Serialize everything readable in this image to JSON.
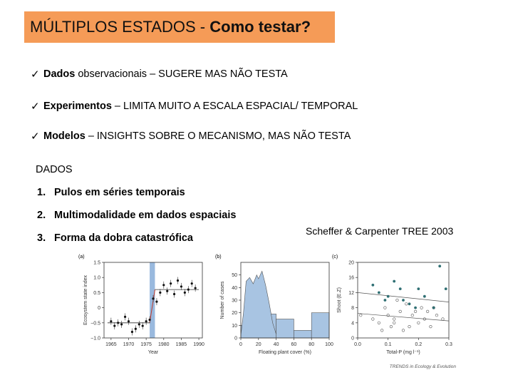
{
  "title": {
    "normal": "MÚLTIPLOS ESTADOS - ",
    "bold": "Como testar?"
  },
  "bullets": [
    {
      "bold": "Dados",
      "rest": "observacionais – SUGERE MAS NÃO TESTA"
    },
    {
      "bold": "Experimentos",
      "rest": "– LIMITA MUITO A ESCALA ESPACIAL/ TEMPORAL"
    },
    {
      "bold": "Modelos",
      "rest": "– INSIGHTS SOBRE O MECANISMO, MAS NÃO TESTA"
    }
  ],
  "dados_heading": "DADOS",
  "list": [
    {
      "num": "1.",
      "text": "Pulos em séries temporais"
    },
    {
      "num": "2.",
      "text": "Multimodalidade em dados espaciais"
    },
    {
      "num": "3.",
      "text": "Forma da dobra catastrófica"
    }
  ],
  "citation": "Scheffer & Carpenter TREE 2003",
  "figure": {
    "credit": "TRENDS in Ecology & Evolution",
    "colors": {
      "highlight": "#7fa7d6",
      "bars": "#a8c4e2",
      "marker": "#2f6f73"
    },
    "panels": [
      {
        "label": "(a)",
        "type": "scatter",
        "ylabel": "Ecosystem state index",
        "xlabel": "Year",
        "xticks": [
          "1965",
          "1970",
          "1975",
          "1980",
          "1985",
          "1990"
        ],
        "yticks": [
          "1.5",
          "1.0",
          "0.5",
          "0",
          "−0.5",
          "−1.0"
        ],
        "xlim": [
          1963,
          1991
        ],
        "ylim": [
          -1.0,
          1.5
        ],
        "highlight_range": [
          1976,
          1977.5
        ],
        "x": [
          1965,
          1966,
          1967,
          1968,
          1969,
          1970,
          1971,
          1972,
          1973,
          1974,
          1975,
          1976,
          1977,
          1978,
          1979,
          1980,
          1981,
          1982,
          1983,
          1984,
          1985,
          1986,
          1987,
          1988,
          1989
        ],
        "y": [
          -0.45,
          -0.6,
          -0.5,
          -0.55,
          -0.3,
          -0.45,
          -0.8,
          -0.7,
          -0.55,
          -0.6,
          -0.45,
          -0.4,
          0.3,
          0.2,
          0.5,
          0.75,
          0.55,
          0.8,
          0.45,
          0.9,
          0.7,
          0.5,
          0.6,
          0.8,
          0.65
        ],
        "mean_before": -0.5,
        "mean_after": 0.6
      },
      {
        "label": "(b)",
        "type": "bar",
        "ylabel": "Number of cases",
        "xlabel": "Floating plant cover (%)",
        "xticks": [
          "0",
          "20",
          "40",
          "60",
          "80",
          "100"
        ],
        "yticks": [
          "50",
          "40",
          "30",
          "20",
          "10",
          "0"
        ],
        "xlim": [
          0,
          100
        ],
        "ylim": [
          0,
          60
        ],
        "bins": [
          [
            0,
            20
          ],
          [
            20,
            40
          ],
          [
            40,
            60
          ],
          [
            60,
            80
          ],
          [
            80,
            100
          ]
        ],
        "values": [
          10,
          19,
          15,
          6,
          20
        ],
        "density_x": [
          0,
          3,
          6,
          10,
          14,
          18,
          20,
          24,
          28,
          32,
          36,
          40
        ],
        "density_y": [
          2,
          20,
          45,
          48,
          43,
          50,
          47,
          53,
          42,
          28,
          12,
          3
        ]
      },
      {
        "label": "(c)",
        "type": "scatter",
        "ylabel": "Shoot (E.Z)",
        "xlabel": "Total-P (mg l⁻¹)",
        "xticks": [
          "0.0",
          "0.1",
          "0.2",
          "0.3"
        ],
        "yticks": [
          "20",
          "16",
          "12",
          "8",
          "4",
          "0"
        ],
        "xlim": [
          0,
          0.3
        ],
        "ylim": [
          0,
          20
        ],
        "open_x": [
          0.01,
          0.05,
          0.07,
          0.09,
          0.1,
          0.11,
          0.12,
          0.14,
          0.15,
          0.16,
          0.18,
          0.2,
          0.21,
          0.22,
          0.23,
          0.24,
          0.26,
          0.28,
          0.13,
          0.17,
          0.19,
          0.25,
          0.08,
          0.12
        ],
        "open_y": [
          6,
          5,
          4,
          8,
          6,
          3,
          5,
          7,
          2,
          9,
          6,
          4,
          8,
          5,
          7,
          3,
          6,
          5,
          10,
          3,
          7,
          8,
          2,
          4
        ],
        "filled_x": [
          0.05,
          0.07,
          0.1,
          0.12,
          0.15,
          0.17,
          0.2,
          0.22,
          0.25,
          0.27,
          0.29,
          0.09,
          0.14,
          0.19
        ],
        "filled_y": [
          14,
          12,
          11,
          15,
          10,
          9,
          13,
          11,
          8,
          19,
          13,
          10,
          13,
          8
        ],
        "line_open": [
          [
            0,
            6.5
          ],
          [
            0.3,
            4.5
          ]
        ],
        "line_filled": [
          [
            0,
            12
          ],
          [
            0.3,
            9.5
          ]
        ]
      }
    ]
  }
}
